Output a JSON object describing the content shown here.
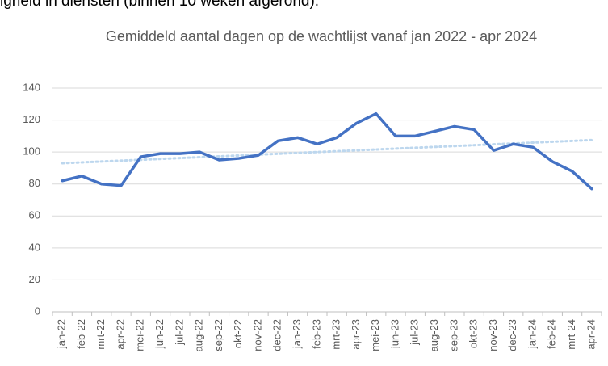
{
  "text_above": "igheid in diensten (binnen 10 weken afgerond).",
  "chart_data": {
    "type": "line",
    "title": "Gemiddeld aantal dagen op de wachtlijst vanaf jan 2022 - apr 2024",
    "categories": [
      "jan-22",
      "feb-22",
      "mrt-22",
      "apr-22",
      "mei-22",
      "jun-22",
      "jul-22",
      "aug-22",
      "sep-22",
      "okt-22",
      "nov-22",
      "dec-22",
      "jan-23",
      "feb-23",
      "mrt-23",
      "apr-23",
      "mei-23",
      "jun-23",
      "jul-23",
      "aug-23",
      "sep-23",
      "okt-23",
      "nov-23",
      "dec-23",
      "jan-24",
      "feb-24",
      "mrt-24",
      "apr-24"
    ],
    "values": [
      82,
      85,
      80,
      79,
      97,
      99,
      99,
      100,
      95,
      96,
      98,
      107,
      109,
      105,
      109,
      118,
      124,
      110,
      110,
      113,
      116,
      114,
      101,
      105,
      103,
      94,
      88,
      77
    ],
    "color": "#4472c4",
    "trendline": {
      "start": 93,
      "end": 107.5,
      "color": "#bdd7ee"
    },
    "ylim": [
      0,
      140
    ],
    "yticks": [
      0,
      20,
      40,
      60,
      80,
      100,
      120,
      140
    ],
    "grid": true
  }
}
